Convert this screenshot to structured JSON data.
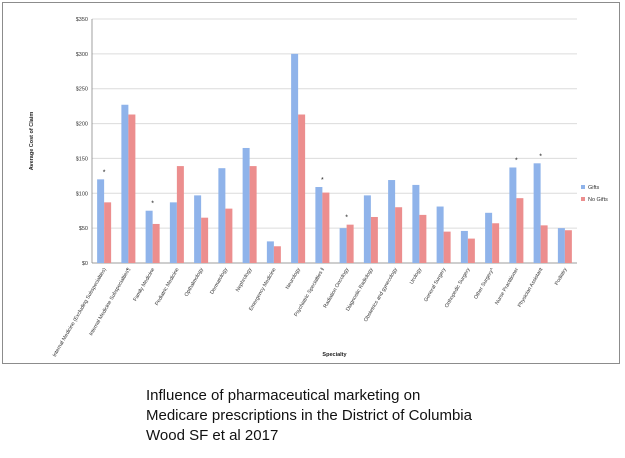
{
  "chart_data": {
    "type": "bar",
    "title": "",
    "xlabel": "Specialty",
    "ylabel": "Average Cost of Claim",
    "ylim": [
      0,
      350
    ],
    "yticks": [
      0,
      50,
      100,
      150,
      200,
      250,
      300,
      350
    ],
    "ytick_labels": [
      "$0",
      "$50",
      "$100",
      "$150",
      "$200",
      "$250",
      "$300",
      "$350"
    ],
    "grid": true,
    "legend_position": "right",
    "categories": [
      "Internal Medicine (Excluding Subspecialties)",
      "Internal Medicine Subspecialties¶",
      "Family Medicine",
      "Pediatric Medicine",
      "Opthalmology",
      "Dermatology",
      "Nephrology",
      "Emergency Medicine",
      "Neurology",
      "Psychiatric Specialties ‖",
      "Radiation Oncology",
      "Diagnostic Radiology",
      "Obstetrics and gynecology",
      "Urology",
      "General Surgery",
      "Orthopedic Surgery",
      "Other Surgery^",
      "Nurse Practitioner",
      "Physician Assistant",
      "Podiatry"
    ],
    "series": [
      {
        "name": "Gifts",
        "color": "#8fb3ea",
        "values": [
          120,
          227,
          75,
          87,
          97,
          136,
          165,
          31,
          300,
          109,
          50,
          97,
          119,
          112,
          81,
          46,
          72,
          137,
          143,
          50
        ]
      },
      {
        "name": "No Gifts",
        "color": "#ec8e8e",
        "values": [
          87,
          213,
          56,
          139,
          65,
          78,
          139,
          24,
          213,
          101,
          55,
          66,
          80,
          69,
          45,
          35,
          57,
          93,
          54,
          47
        ]
      }
    ],
    "annotations": [
      {
        "category_index": 0,
        "text": "*"
      },
      {
        "category_index": 2,
        "text": "*"
      },
      {
        "category_index": 9,
        "text": "*"
      },
      {
        "category_index": 10,
        "text": "*"
      },
      {
        "category_index": 17,
        "text": "*"
      },
      {
        "category_index": 18,
        "text": "*"
      }
    ]
  },
  "caption": {
    "line1": "Influence of pharmaceutical marketing on",
    "line2": "Medicare prescriptions in the District of Columbia",
    "line3": "Wood SF et al 2017"
  }
}
